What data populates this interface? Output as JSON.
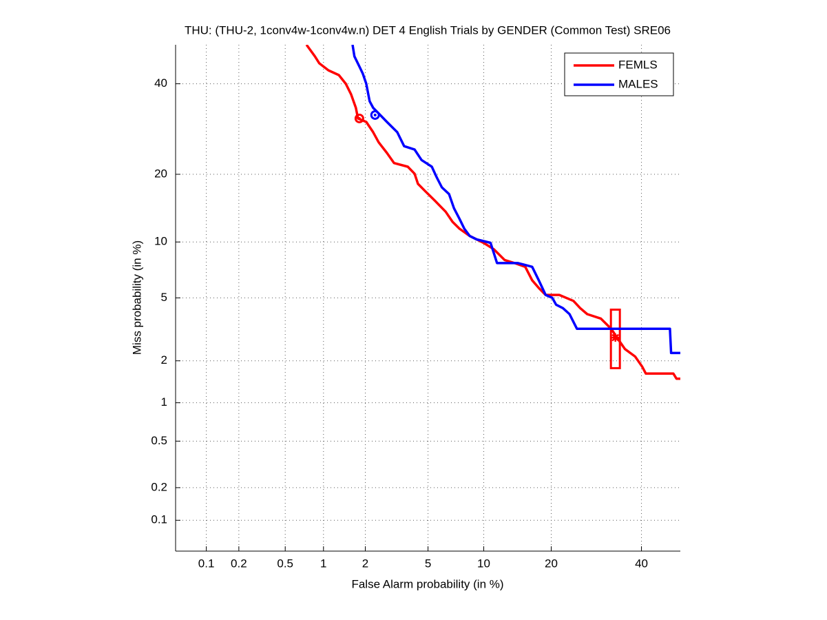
{
  "chart_data": {
    "type": "det",
    "title": "THU: (THU-2, 1conv4w-1conv4w.n) DET 4 English Trials by GENDER (Common Test) SRE06",
    "xlabel": "False Alarm probability (in %)",
    "ylabel": "Miss probability (in %)",
    "scale": "normal_deviate",
    "grid": true,
    "legend": "upper right",
    "xlim": [
      0.05,
      50
    ],
    "ylim": [
      0.05,
      50
    ],
    "xticks": [
      0.1,
      0.2,
      0.5,
      1,
      2,
      5,
      10,
      20,
      40
    ],
    "yticks": [
      0.1,
      0.2,
      0.5,
      1,
      2,
      5,
      10,
      20,
      40
    ],
    "series": [
      {
        "name": "FEMLS",
        "color": "#ff0000",
        "x": [
          0.74,
          0.86,
          0.93,
          1.09,
          1.3,
          1.46,
          1.59,
          1.72,
          1.78,
          2.03,
          2.26,
          2.46,
          2.79,
          3.1,
          3.78,
          4.16,
          4.36,
          4.8,
          5.5,
          6.3,
          6.88,
          7.5,
          8.49,
          9.98,
          11.2,
          12.6,
          14,
          15.6,
          16.7,
          17.8,
          19,
          21.5,
          24.3,
          25.7,
          27.2,
          30.2,
          32.6,
          34.2,
          35.9,
          38.4,
          40.2,
          41.1,
          48.2,
          49,
          50
        ],
        "y": [
          50,
          47,
          45.2,
          43.4,
          42.2,
          40,
          37.4,
          34.1,
          31.6,
          30.8,
          28.5,
          26.3,
          24.1,
          22.1,
          21.4,
          20.1,
          18.3,
          17.1,
          15.5,
          13.9,
          12.5,
          11.6,
          10.7,
          9.9,
          9.2,
          8.1,
          7.8,
          7.45,
          6.3,
          5.7,
          5.2,
          5.2,
          4.8,
          4.35,
          4,
          3.76,
          3.25,
          2.8,
          2.4,
          2.14,
          1.82,
          1.63,
          1.63,
          1.5,
          1.5
        ],
        "min_dcf": {
          "x": 1.82,
          "y": 31.6
        },
        "act_dcf": {
          "x": 33.6,
          "y": 2.85,
          "y_range": [
            1.78,
            4.26
          ]
        }
      },
      {
        "name": "MALES",
        "color": "#0000ff",
        "x": [
          1.63,
          1.68,
          1.82,
          1.92,
          2.03,
          2.14,
          2.26,
          2.52,
          2.79,
          3.25,
          3.59,
          4.16,
          4.58,
          5.26,
          5.6,
          6,
          6.58,
          7,
          7.5,
          7.95,
          8.49,
          9.2,
          10.8,
          11.6,
          14.5,
          16.7,
          17.8,
          19,
          20.2,
          20.9,
          22.2,
          23.5,
          25,
          47.3,
          47.6,
          50
        ],
        "y": [
          50,
          47,
          44.4,
          42.6,
          40,
          35.7,
          34.1,
          32.4,
          30.8,
          28.5,
          25.5,
          24.8,
          22.7,
          21.4,
          19.5,
          17.7,
          16.6,
          14.4,
          12.9,
          11.6,
          10.7,
          10.3,
          9.9,
          7.8,
          7.8,
          7.45,
          6.3,
          5.2,
          5,
          4.56,
          4.35,
          4,
          3.25,
          3.25,
          2.26,
          2.26
        ],
        "min_dcf": {
          "x": 2.33,
          "y": 32.4
        }
      }
    ]
  }
}
